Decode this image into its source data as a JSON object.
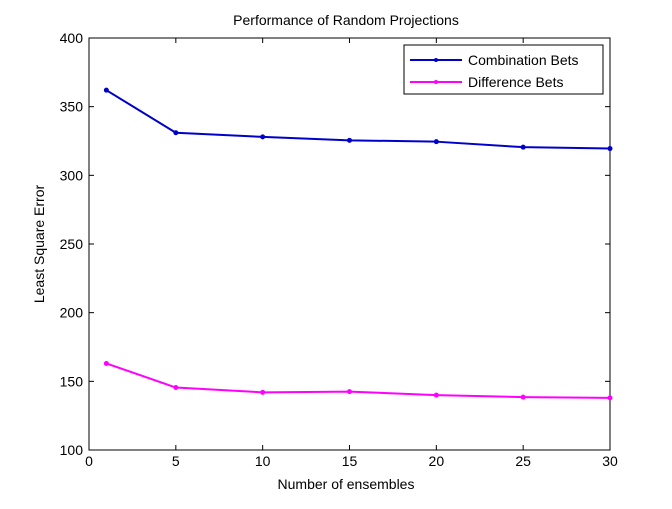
{
  "chart_data": {
    "type": "line",
    "title": "Performance of Random Projections",
    "xlabel": "Number of ensembles",
    "ylabel": "Least Square Error",
    "xlim": [
      0,
      30
    ],
    "ylim": [
      100,
      400
    ],
    "xticks": [
      0,
      5,
      10,
      15,
      20,
      25,
      30
    ],
    "yticks": [
      100,
      150,
      200,
      250,
      300,
      350,
      400
    ],
    "grid": false,
    "legend_position": "top-right",
    "x": [
      1,
      5,
      10,
      15,
      20,
      25,
      30
    ],
    "series": [
      {
        "name": "Combination Bets",
        "color": "#0000cc",
        "values": [
          362,
          331,
          328,
          325.5,
          324.5,
          320.5,
          319.5
        ]
      },
      {
        "name": "Difference Bets",
        "color": "#ff00ff",
        "values": [
          163,
          145.5,
          142,
          142.5,
          140,
          138.5,
          138
        ]
      }
    ]
  }
}
